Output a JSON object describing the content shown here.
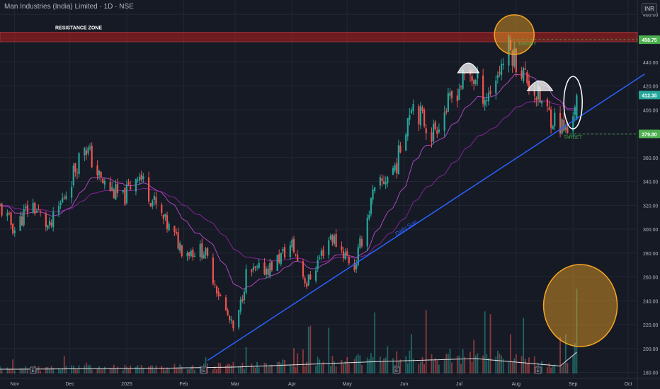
{
  "header": {
    "symbol_title": "Man Industries (India) Limited · 1D · NSE",
    "currency": "INR"
  },
  "colors": {
    "background": "#161a25",
    "up": "#26a69a",
    "down": "#ef5350",
    "ema_fast": "#ab47bc",
    "ema_slow": "#9c27b0",
    "trendline": "#2962ff",
    "resistance": "#b71c1c",
    "highlight": "#f5a623",
    "target": "#4caf50"
  },
  "chart_data": {
    "type": "candlestick",
    "title": "Man Industries (India) Limited · 1D · NSE",
    "currency": "INR",
    "y_axis": {
      "range": [
        175,
        492
      ],
      "ticks": [
        180,
        200,
        220,
        240,
        260,
        280,
        300,
        320,
        340,
        360,
        380,
        400,
        420,
        440,
        460,
        480
      ]
    },
    "x_axis": {
      "range": [
        "2024-10-24",
        "2025-10-06"
      ],
      "ticks": [
        {
          "label": "Nov",
          "date": "2024-11-01"
        },
        {
          "label": "Dec",
          "date": "2024-12-01"
        },
        {
          "label": "2025",
          "date": "2025-01-01"
        },
        {
          "label": "Feb",
          "date": "2025-02-01"
        },
        {
          "label": "Mar",
          "date": "2025-03-01"
        },
        {
          "label": "Apr",
          "date": "2025-04-01"
        },
        {
          "label": "May",
          "date": "2025-05-01"
        },
        {
          "label": "Jun",
          "date": "2025-06-01"
        },
        {
          "label": "Jul",
          "date": "2025-07-01"
        },
        {
          "label": "Aug",
          "date": "2025-08-01"
        },
        {
          "label": "Sep",
          "date": "2025-09-01"
        },
        {
          "label": "Oct",
          "date": "2025-10-01"
        }
      ]
    },
    "price_path": [
      {
        "date": "2024-10-24",
        "close": 318
      },
      {
        "date": "2024-11-01",
        "close": 300
      },
      {
        "date": "2024-11-10",
        "close": 322
      },
      {
        "date": "2024-11-20",
        "close": 300
      },
      {
        "date": "2024-11-30",
        "close": 335
      },
      {
        "date": "2024-12-09",
        "close": 372
      },
      {
        "date": "2024-12-18",
        "close": 340
      },
      {
        "date": "2024-12-30",
        "close": 325
      },
      {
        "date": "2025-01-07",
        "close": 348
      },
      {
        "date": "2025-01-20",
        "close": 310
      },
      {
        "date": "2025-02-01",
        "close": 282
      },
      {
        "date": "2025-02-12",
        "close": 282
      },
      {
        "date": "2025-02-22",
        "close": 238
      },
      {
        "date": "2025-03-01",
        "close": 212
      },
      {
        "date": "2025-03-07",
        "close": 262
      },
      {
        "date": "2025-03-20",
        "close": 268
      },
      {
        "date": "2025-04-01",
        "close": 287
      },
      {
        "date": "2025-04-09",
        "close": 254
      },
      {
        "date": "2025-04-22",
        "close": 295
      },
      {
        "date": "2025-05-05",
        "close": 268
      },
      {
        "date": "2025-05-15",
        "close": 328
      },
      {
        "date": "2025-05-28",
        "close": 355
      },
      {
        "date": "2025-06-05",
        "close": 408
      },
      {
        "date": "2025-06-16",
        "close": 380
      },
      {
        "date": "2025-06-28",
        "close": 412
      },
      {
        "date": "2025-07-06",
        "close": 432
      },
      {
        "date": "2025-07-16",
        "close": 410
      },
      {
        "date": "2025-07-28",
        "close": 452
      },
      {
        "date": "2025-08-06",
        "close": 428
      },
      {
        "date": "2025-08-18",
        "close": 398
      },
      {
        "date": "2025-08-29",
        "close": 381
      },
      {
        "date": "2025-09-03",
        "close": 412.35
      }
    ],
    "volume_profile": [
      {
        "date": "2024-11-01",
        "level": 0.2
      },
      {
        "date": "2025-01-15",
        "level": 0.24
      },
      {
        "date": "2025-03-01",
        "level": 0.3
      },
      {
        "date": "2025-05-15",
        "level": 0.55
      },
      {
        "date": "2025-07-10",
        "level": 0.7
      },
      {
        "date": "2025-08-25",
        "level": 0.35
      },
      {
        "date": "2025-09-03",
        "level": 1.0
      }
    ],
    "price_labels": [
      {
        "value": 458.75,
        "text": "458.75",
        "color": "#4caf50"
      },
      {
        "value": 412.35,
        "text": "412.35",
        "color": "#26a69a"
      },
      {
        "value": 379.8,
        "text": "379.80",
        "color": "#4caf50"
      }
    ],
    "annotations": {
      "resistance_zone": {
        "label": "RESISTANCE ZONE",
        "low": 457,
        "high": 465
      },
      "trendline": {
        "label": "Daily Sup",
        "from": {
          "date": "2025-02-14",
          "price": 190
        },
        "to": {
          "date": "2025-10-10",
          "price": 430
        }
      },
      "targets": [
        {
          "label": "TARGET",
          "date": "2025-08-05",
          "price": 454
        },
        {
          "label": "TARGET",
          "date": "2025-08-30",
          "price": 376
        }
      ],
      "earnings_markers": {
        "label": "E",
        "dates": [
          "2024-11-11",
          "2025-02-12",
          "2025-05-28",
          "2025-08-13"
        ]
      }
    }
  }
}
